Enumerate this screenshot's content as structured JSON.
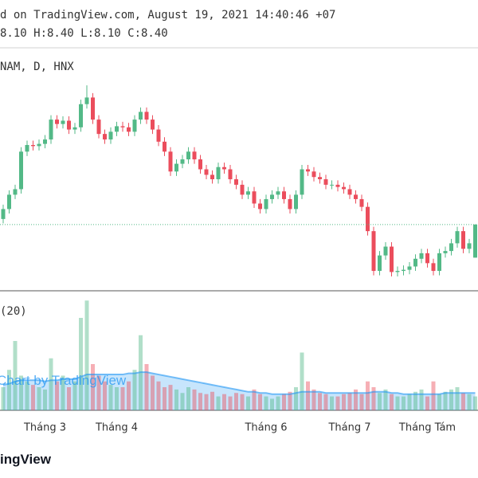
{
  "chart_data": {
    "type": "candlestick",
    "header_line": "d on TradingView.com, August 19, 2021 14:40:46 +07",
    "ohlc_line": "8.10 H:8.40 L:8.10 C:8.40",
    "symbol": "NAM, D, HNX",
    "volume_label": "(20)",
    "watermark": "Chart by TradingView",
    "categories": [
      null,
      null,
      null,
      null,
      null,
      null,
      null,
      "Tháng 3",
      null,
      null,
      null,
      null,
      null,
      null,
      null,
      null,
      null,
      null,
      null,
      "Tháng 4",
      null,
      null,
      null,
      null,
      null,
      null,
      null,
      null,
      null,
      null,
      null,
      null,
      null,
      null,
      null,
      null,
      null,
      null,
      null,
      null,
      null,
      null,
      null,
      null,
      "Tháng 6",
      null,
      null,
      null,
      null,
      null,
      null,
      null,
      null,
      null,
      null,
      null,
      null,
      null,
      "Tháng 7",
      null,
      null,
      null,
      null,
      null,
      null,
      null,
      null,
      null,
      null,
      null,
      null,
      "Tháng Tám",
      null,
      null,
      null,
      null,
      null,
      null,
      null,
      null
    ],
    "open": [
      8.45,
      8.54,
      8.67,
      8.72,
      9.06,
      9.12,
      9.11,
      9.13,
      9.17,
      9.35,
      9.31,
      9.34,
      9.26,
      9.28,
      9.49,
      9.55,
      9.35,
      9.22,
      9.17,
      9.24,
      9.29,
      9.28,
      9.24,
      9.35,
      9.42,
      9.35,
      9.26,
      9.15,
      9.06,
      8.88,
      8.95,
      8.99,
      9.06,
      8.99,
      8.9,
      8.85,
      8.81,
      8.92,
      8.9,
      8.81,
      8.76,
      8.67,
      8.7,
      8.59,
      8.54,
      8.63,
      8.67,
      8.7,
      8.63,
      8.54,
      8.67,
      8.9,
      8.88,
      8.83,
      8.81,
      8.76,
      8.76,
      8.74,
      8.72,
      8.67,
      8.63,
      8.56,
      8.34,
      7.98,
      8.12,
      8.2,
      7.97,
      7.98,
      7.99,
      8.02,
      8.09,
      8.14,
      8.05,
      7.98,
      8.14,
      8.16,
      8.23,
      8.34,
      8.18,
      8.1
    ],
    "high": [
      8.58,
      8.71,
      8.76,
      9.1,
      9.16,
      9.16,
      9.17,
      9.21,
      9.39,
      9.39,
      9.38,
      9.38,
      9.32,
      9.53,
      9.66,
      9.59,
      9.39,
      9.26,
      9.28,
      9.33,
      9.33,
      9.32,
      9.39,
      9.46,
      9.46,
      9.39,
      9.3,
      9.19,
      9.1,
      8.99,
      9.03,
      9.1,
      9.1,
      9.03,
      8.94,
      8.89,
      8.96,
      8.96,
      8.94,
      8.85,
      8.8,
      8.74,
      8.74,
      8.63,
      8.67,
      8.71,
      8.74,
      8.74,
      8.67,
      8.71,
      8.94,
      8.94,
      8.92,
      8.87,
      8.85,
      8.8,
      8.8,
      8.78,
      8.76,
      8.71,
      8.67,
      8.6,
      8.38,
      8.16,
      8.24,
      8.24,
      8.02,
      8.03,
      8.06,
      8.13,
      8.18,
      8.18,
      8.09,
      8.18,
      8.2,
      8.27,
      8.38,
      8.38,
      8.27,
      8.4
    ],
    "low": [
      8.41,
      8.5,
      8.63,
      8.68,
      9.02,
      9.07,
      9.07,
      9.09,
      9.13,
      9.27,
      9.27,
      9.22,
      9.22,
      9.24,
      9.45,
      9.31,
      9.18,
      9.13,
      9.13,
      9.2,
      9.24,
      9.2,
      9.2,
      9.31,
      9.31,
      9.22,
      9.11,
      9.02,
      8.84,
      8.84,
      8.91,
      8.95,
      8.95,
      8.86,
      8.81,
      8.77,
      8.77,
      8.86,
      8.77,
      8.72,
      8.63,
      8.63,
      8.55,
      8.5,
      8.5,
      8.59,
      8.63,
      8.59,
      8.5,
      8.5,
      8.63,
      8.84,
      8.79,
      8.77,
      8.72,
      8.72,
      8.7,
      8.68,
      8.63,
      8.59,
      8.52,
      8.3,
      7.94,
      7.94,
      8.08,
      7.93,
      7.93,
      7.94,
      7.95,
      7.98,
      8.05,
      8.01,
      7.94,
      7.94,
      8.1,
      8.12,
      8.19,
      8.14,
      8.14,
      8.1
    ],
    "close": [
      8.54,
      8.67,
      8.72,
      9.06,
      9.12,
      9.11,
      9.13,
      9.17,
      9.35,
      9.31,
      9.34,
      9.26,
      9.28,
      9.49,
      9.55,
      9.35,
      9.22,
      9.17,
      9.24,
      9.29,
      9.28,
      9.24,
      9.35,
      9.42,
      9.35,
      9.26,
      9.15,
      9.06,
      8.88,
      8.95,
      8.99,
      9.06,
      8.99,
      8.9,
      8.85,
      8.81,
      8.92,
      8.9,
      8.81,
      8.76,
      8.67,
      8.7,
      8.59,
      8.54,
      8.63,
      8.67,
      8.7,
      8.63,
      8.54,
      8.67,
      8.9,
      8.88,
      8.83,
      8.81,
      8.76,
      8.76,
      8.74,
      8.72,
      8.67,
      8.63,
      8.56,
      8.34,
      7.98,
      8.12,
      8.2,
      7.97,
      7.98,
      7.99,
      8.02,
      8.09,
      8.14,
      8.05,
      7.98,
      8.14,
      8.16,
      8.23,
      8.34,
      8.18,
      8.23,
      8.4
    ],
    "up_color": "#53b987",
    "down_color": "#eb4d5c",
    "ylim": [
      7.8,
      10.0
    ],
    "last_price_line": true,
    "volume": {
      "values": [
        20,
        35,
        60,
        30,
        25,
        22,
        20,
        18,
        45,
        25,
        30,
        20,
        25,
        80,
        95,
        40,
        30,
        25,
        22,
        20,
        20,
        25,
        35,
        65,
        40,
        30,
        25,
        20,
        22,
        18,
        15,
        20,
        18,
        15,
        14,
        16,
        12,
        14,
        12,
        15,
        14,
        12,
        18,
        14,
        12,
        10,
        12,
        14,
        16,
        20,
        50,
        25,
        18,
        15,
        14,
        12,
        12,
        14,
        15,
        18,
        14,
        25,
        20,
        15,
        18,
        14,
        12,
        12,
        14,
        16,
        18,
        12,
        25,
        14,
        16,
        18,
        20,
        15,
        14,
        12
      ],
      "ma": [
        22,
        23,
        25,
        26,
        26,
        26,
        26,
        25,
        26,
        26,
        27,
        27,
        27,
        29,
        31,
        31,
        31,
        31,
        31,
        31,
        31,
        32,
        32,
        33,
        33,
        32,
        31,
        30,
        29,
        28,
        27,
        26,
        25,
        24,
        23,
        22,
        21,
        20,
        19,
        18,
        17,
        16,
        16,
        15,
        15,
        14,
        14,
        14,
        14,
        15,
        16,
        16,
        16,
        16,
        15,
        15,
        15,
        15,
        15,
        15,
        15,
        15,
        16,
        16,
        16,
        15,
        15,
        14,
        14,
        14,
        14,
        14,
        14,
        14,
        15,
        15,
        15,
        15,
        15,
        15
      ],
      "ma_color": "#2196f3",
      "ylim": [
        0,
        100
      ]
    }
  },
  "footer": {
    "logo": "ingView"
  }
}
